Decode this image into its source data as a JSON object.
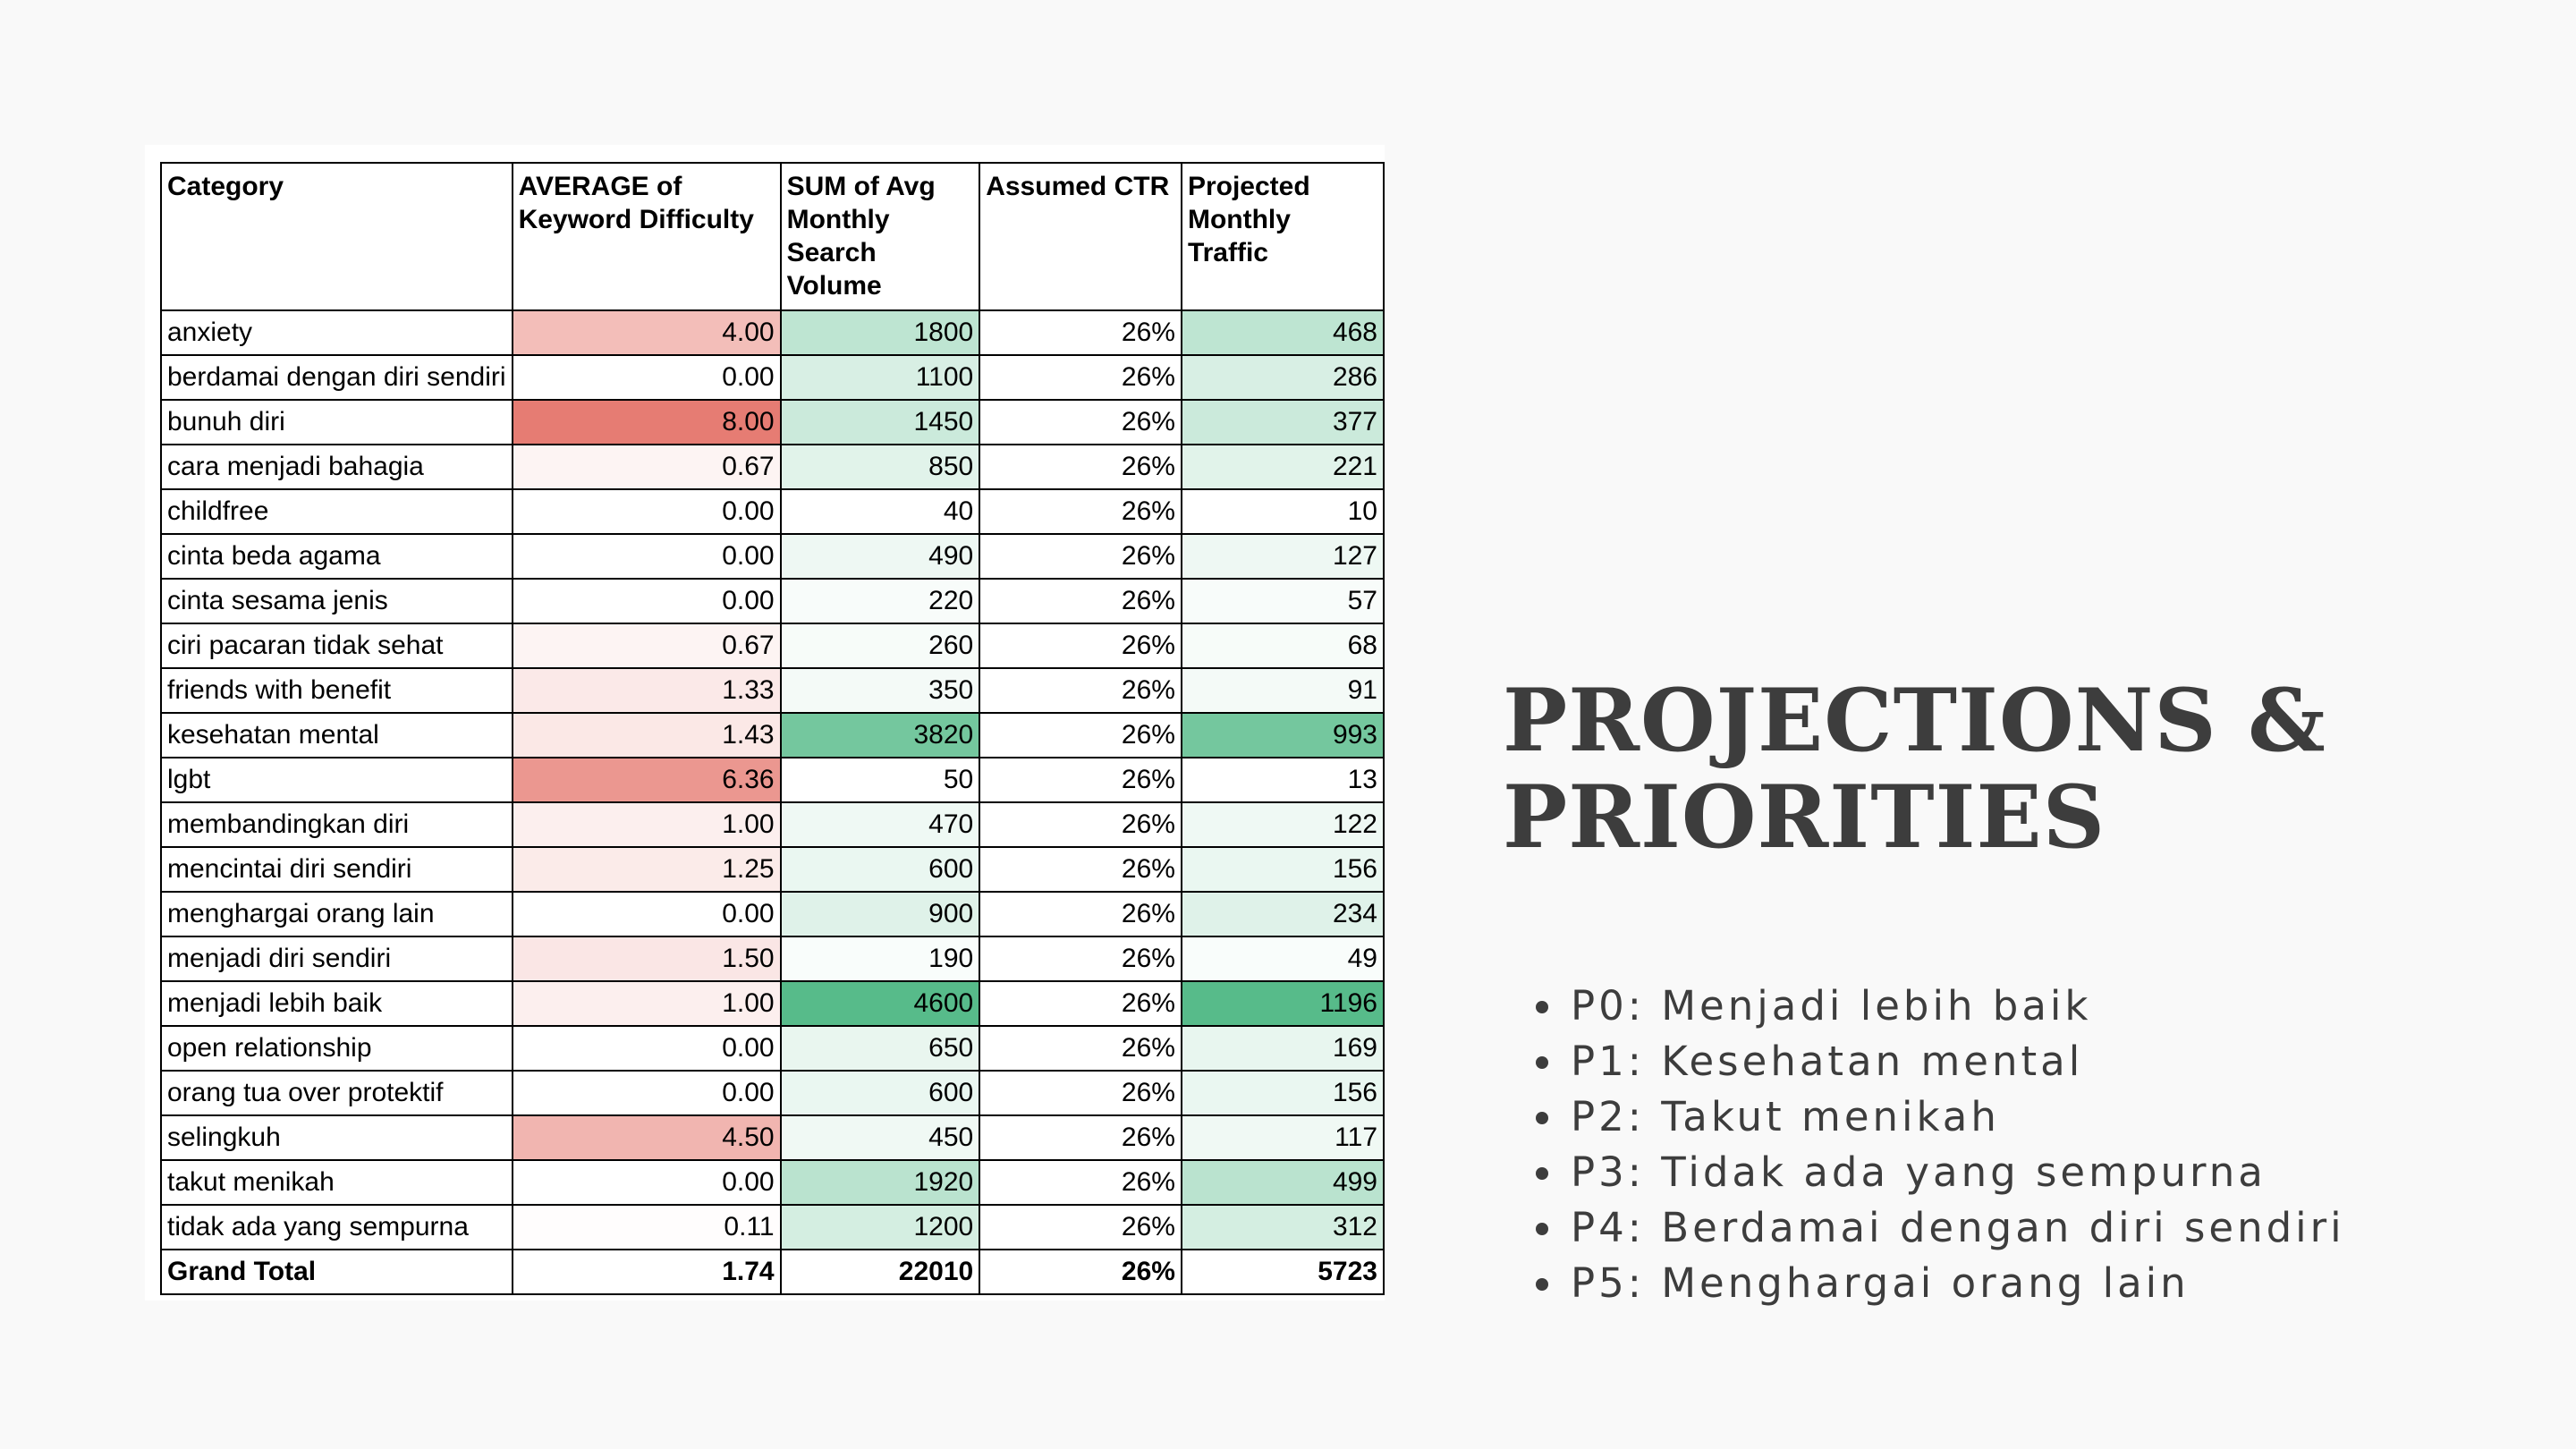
{
  "slide": {
    "title": "PROJECTIONS & PRIORITIES",
    "priorities": [
      "P0: Menjadi lebih baik",
      "P1: Kesehatan mental",
      "P2: Takut menikah",
      "P3: Tidak ada yang sempurna",
      "P4: Berdamai dengan diri sendiri",
      "P5: Menghargai orang lain"
    ]
  },
  "table": {
    "headers": [
      "Category",
      "AVERAGE of Keyword Difficulty",
      "SUM of Avg Monthly Search Volume",
      "Assumed CTR",
      "Projected Monthly Traffic"
    ],
    "rows": [
      {
        "category": "anxiety",
        "kd": "4.00",
        "volume": "1800",
        "ctr": "26%",
        "traffic": "468"
      },
      {
        "category": "berdamai dengan diri sendiri",
        "kd": "0.00",
        "volume": "1100",
        "ctr": "26%",
        "traffic": "286"
      },
      {
        "category": "bunuh diri",
        "kd": "8.00",
        "volume": "1450",
        "ctr": "26%",
        "traffic": "377"
      },
      {
        "category": "cara menjadi bahagia",
        "kd": "0.67",
        "volume": "850",
        "ctr": "26%",
        "traffic": "221"
      },
      {
        "category": "childfree",
        "kd": "0.00",
        "volume": "40",
        "ctr": "26%",
        "traffic": "10"
      },
      {
        "category": "cinta beda agama",
        "kd": "0.00",
        "volume": "490",
        "ctr": "26%",
        "traffic": "127"
      },
      {
        "category": "cinta sesama jenis",
        "kd": "0.00",
        "volume": "220",
        "ctr": "26%",
        "traffic": "57"
      },
      {
        "category": "ciri pacaran tidak sehat",
        "kd": "0.67",
        "volume": "260",
        "ctr": "26%",
        "traffic": "68"
      },
      {
        "category": "friends with benefit",
        "kd": "1.33",
        "volume": "350",
        "ctr": "26%",
        "traffic": "91"
      },
      {
        "category": "kesehatan mental",
        "kd": "1.43",
        "volume": "3820",
        "ctr": "26%",
        "traffic": "993"
      },
      {
        "category": "lgbt",
        "kd": "6.36",
        "volume": "50",
        "ctr": "26%",
        "traffic": "13"
      },
      {
        "category": "membandingkan diri",
        "kd": "1.00",
        "volume": "470",
        "ctr": "26%",
        "traffic": "122"
      },
      {
        "category": "mencintai diri sendiri",
        "kd": "1.25",
        "volume": "600",
        "ctr": "26%",
        "traffic": "156"
      },
      {
        "category": "menghargai orang lain",
        "kd": "0.00",
        "volume": "900",
        "ctr": "26%",
        "traffic": "234"
      },
      {
        "category": "menjadi diri sendiri",
        "kd": "1.50",
        "volume": "190",
        "ctr": "26%",
        "traffic": "49"
      },
      {
        "category": "menjadi lebih baik",
        "kd": "1.00",
        "volume": "4600",
        "ctr": "26%",
        "traffic": "1196"
      },
      {
        "category": "open relationship",
        "kd": "0.00",
        "volume": "650",
        "ctr": "26%",
        "traffic": "169"
      },
      {
        "category": "orang tua over protektif",
        "kd": "0.00",
        "volume": "600",
        "ctr": "26%",
        "traffic": "156"
      },
      {
        "category": "selingkuh",
        "kd": "4.50",
        "volume": "450",
        "ctr": "26%",
        "traffic": "117"
      },
      {
        "category": "takut menikah",
        "kd": "0.00",
        "volume": "1920",
        "ctr": "26%",
        "traffic": "499"
      },
      {
        "category": "tidak ada yang sempurna",
        "kd": "0.11",
        "volume": "1200",
        "ctr": "26%",
        "traffic": "312"
      }
    ],
    "total": {
      "category": "Grand Total",
      "kd": "1.74",
      "volume": "22010",
      "ctr": "26%",
      "traffic": "5723"
    }
  },
  "colors": {
    "text": "#3d3d3d",
    "heat_red": "#e67c73",
    "heat_green": "#57bb8a",
    "background": "#f9f9f9"
  }
}
